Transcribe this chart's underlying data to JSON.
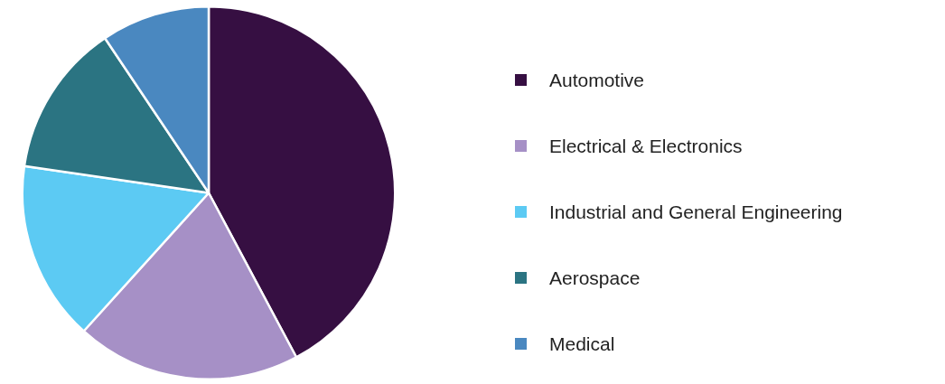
{
  "chart_data": {
    "type": "pie",
    "categories": [
      "Automotive",
      "Electrical & Electronics",
      "Industrial and General Engineering",
      "Aerospace",
      "Medical"
    ],
    "values": [
      42.2,
      19.5,
      15.6,
      13.3,
      9.4
    ],
    "colors": [
      "#360f42",
      "#a690c6",
      "#5ccaf3",
      "#2b7482",
      "#4a88c0"
    ],
    "legend": "right"
  }
}
